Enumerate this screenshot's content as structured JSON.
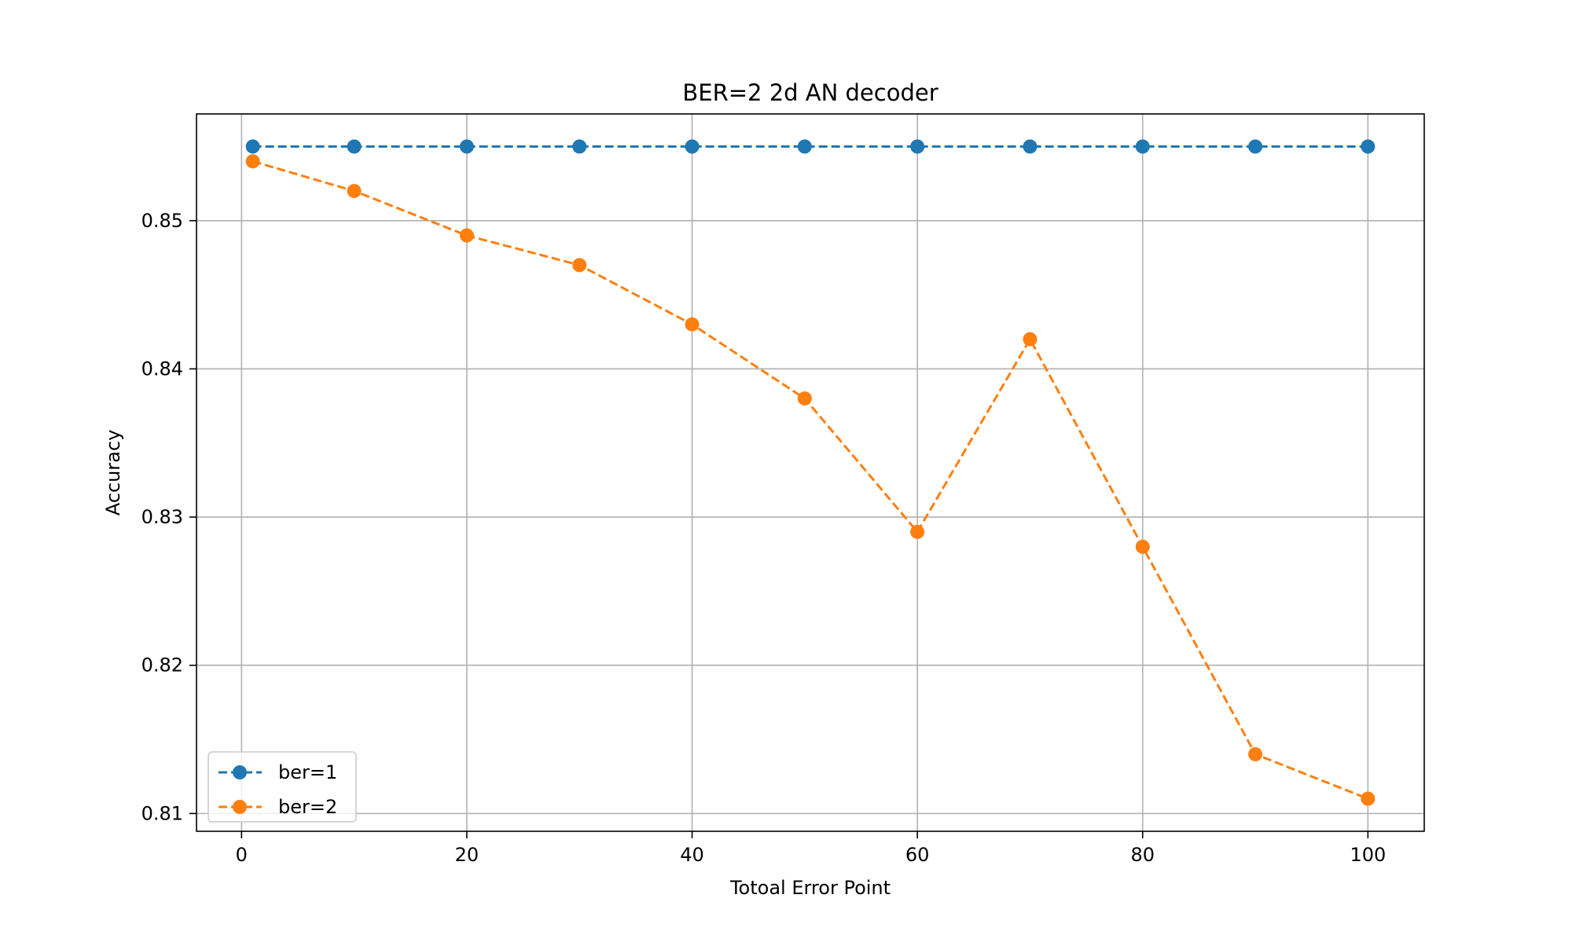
{
  "chart_data": {
    "type": "line",
    "title": "BER=2 2d AN decoder",
    "xlabel": "Totoal Error Point",
    "ylabel": "Accuracy",
    "xlim": [
      -4,
      105
    ],
    "ylim": [
      0.8088,
      0.8572
    ],
    "xticks": [
      0,
      20,
      40,
      60,
      80,
      100
    ],
    "xtick_labels": [
      "0",
      "20",
      "40",
      "60",
      "80",
      "100"
    ],
    "yticks": [
      0.81,
      0.82,
      0.83,
      0.84,
      0.85
    ],
    "ytick_labels": [
      "0.81",
      "0.82",
      "0.83",
      "0.84",
      "0.85"
    ],
    "grid": true,
    "legend_position": "lower-left",
    "x": [
      1,
      10,
      20,
      30,
      40,
      50,
      60,
      70,
      80,
      90,
      100
    ],
    "series": [
      {
        "name": "ber=1",
        "color": "#1f77b4",
        "line_style": "dashed",
        "marker": "circle",
        "values": [
          0.855,
          0.855,
          0.855,
          0.855,
          0.855,
          0.855,
          0.855,
          0.855,
          0.855,
          0.855,
          0.855
        ]
      },
      {
        "name": "ber=2",
        "color": "#ff7f0e",
        "line_style": "dashed",
        "marker": "circle",
        "values": [
          0.854,
          0.852,
          0.849,
          0.847,
          0.843,
          0.838,
          0.829,
          0.842,
          0.828,
          0.814,
          0.811
        ]
      }
    ]
  }
}
